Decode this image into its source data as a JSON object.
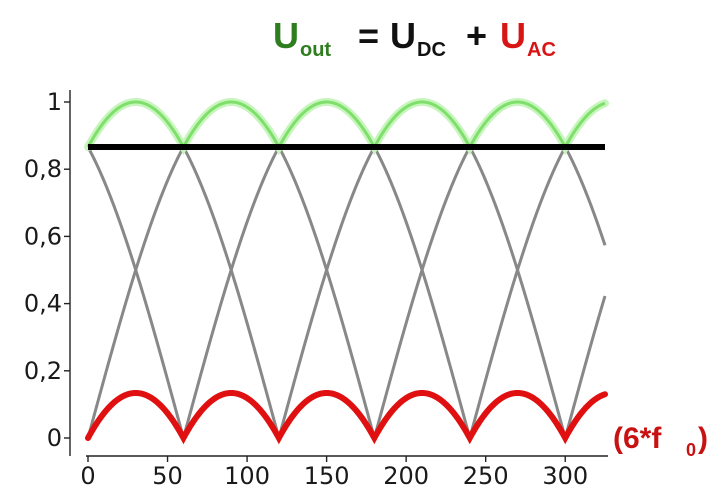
{
  "equation": {
    "u_out": {
      "base": "U",
      "sub": "out",
      "color": "#2e7d1f"
    },
    "equals": "=",
    "u_dc": {
      "base": "U",
      "sub": "DC",
      "color": "#111111"
    },
    "plus": "+",
    "u_ac": {
      "base": "U",
      "sub": "AC",
      "color": "#d81414"
    }
  },
  "ripple_label": {
    "prefix": "(6*f",
    "sub": "0",
    "suffix": ")",
    "color": "#c81212"
  },
  "chart_data": {
    "type": "line",
    "xlim": [
      0,
      325
    ],
    "ylim": [
      0,
      1
    ],
    "xticks": [
      0,
      50,
      100,
      150,
      200,
      250,
      300
    ],
    "xtick_labels": [
      "0",
      "50",
      "100",
      "150",
      "200",
      "250",
      "300"
    ],
    "yticks": [
      0,
      0.2,
      0.4,
      0.6,
      0.8,
      1
    ],
    "ytick_labels": [
      "0",
      "0,2",
      "0,4",
      "0,6",
      "0,8",
      "1"
    ],
    "grid": false,
    "series": [
      {
        "kind": "phase_sine_magnitudes",
        "values": "|sin(x + k*60°)|, k = 0..2",
        "color": "#888888"
      },
      {
        "kind": "envelope",
        "values": "max of phase magnitudes, 0.866 to 1",
        "color": "#7ee06a"
      },
      {
        "kind": "dc_level",
        "value": 0.866,
        "color": "#000000"
      },
      {
        "kind": "ac_ripple",
        "values": "envelope minus 0.866, 0 to 0.134",
        "color": "#e01010"
      }
    ]
  }
}
